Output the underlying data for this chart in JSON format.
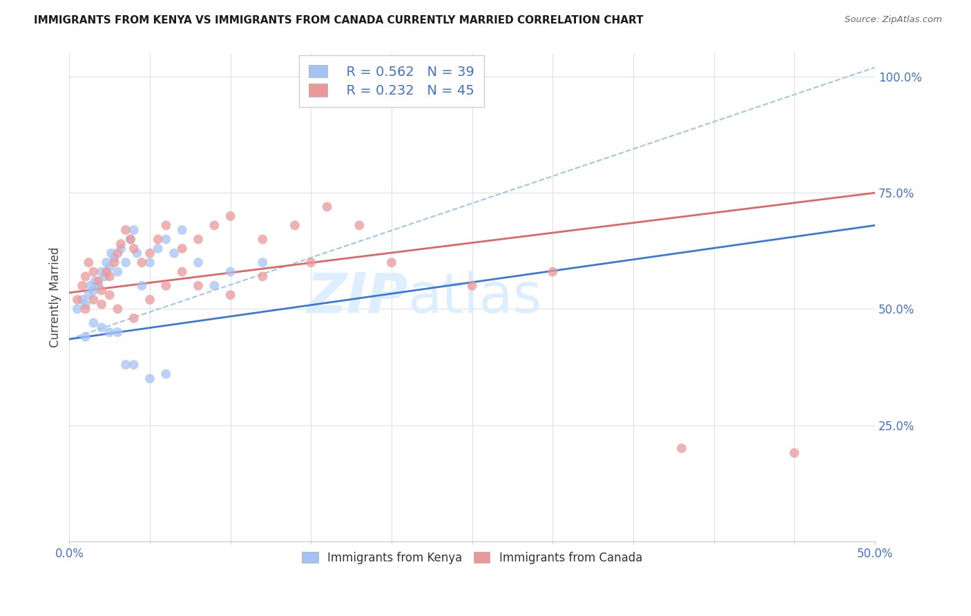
{
  "title": "IMMIGRANTS FROM KENYA VS IMMIGRANTS FROM CANADA CURRENTLY MARRIED CORRELATION CHART",
  "source": "Source: ZipAtlas.com",
  "ylabel": "Currently Married",
  "legend_label_blue": "Immigrants from Kenya",
  "legend_label_pink": "Immigrants from Canada",
  "legend_r_blue": "R = 0.562",
  "legend_n_blue": "N = 39",
  "legend_r_pink": "R = 0.232",
  "legend_n_pink": "N = 45",
  "blue_color": "#a4c2f4",
  "pink_color": "#ea9999",
  "blue_line_color": "#3c78d8",
  "pink_line_color": "#e06666",
  "dashed_line_color": "#9fc5e8",
  "grid_color": "#e0e0e0",
  "title_color": "#1a1a1a",
  "axis_label_color": "#4472c4",
  "watermark_color": "#ddeeff",
  "background_color": "#ffffff",
  "kenya_x": [
    0.5,
    0.8,
    1.0,
    1.2,
    1.3,
    1.5,
    1.6,
    1.8,
    2.0,
    2.2,
    2.3,
    2.5,
    2.6,
    2.8,
    3.0,
    3.2,
    3.5,
    3.8,
    4.0,
    4.2,
    4.5,
    5.0,
    5.5,
    6.0,
    6.5,
    7.0,
    8.0,
    9.0,
    10.0,
    12.0,
    1.0,
    1.5,
    2.0,
    2.5,
    3.0,
    3.5,
    4.0,
    5.0,
    6.0
  ],
  "kenya_y": [
    0.5,
    0.52,
    0.51,
    0.53,
    0.55,
    0.54,
    0.56,
    0.55,
    0.58,
    0.57,
    0.6,
    0.59,
    0.62,
    0.61,
    0.58,
    0.63,
    0.6,
    0.65,
    0.67,
    0.62,
    0.55,
    0.6,
    0.63,
    0.65,
    0.62,
    0.67,
    0.6,
    0.55,
    0.58,
    0.6,
    0.44,
    0.47,
    0.46,
    0.45,
    0.45,
    0.38,
    0.38,
    0.35,
    0.36
  ],
  "canada_x": [
    0.5,
    0.8,
    1.0,
    1.2,
    1.5,
    1.8,
    2.0,
    2.3,
    2.5,
    2.8,
    3.0,
    3.2,
    3.5,
    3.8,
    4.0,
    4.5,
    5.0,
    5.5,
    6.0,
    7.0,
    8.0,
    9.0,
    10.0,
    12.0,
    14.0,
    16.0,
    18.0,
    20.0,
    25.0,
    30.0,
    1.0,
    1.5,
    2.0,
    2.5,
    3.0,
    4.0,
    5.0,
    6.0,
    7.0,
    8.0,
    10.0,
    12.0,
    15.0,
    38.0,
    45.0
  ],
  "canada_y": [
    0.52,
    0.55,
    0.57,
    0.6,
    0.58,
    0.56,
    0.54,
    0.58,
    0.57,
    0.6,
    0.62,
    0.64,
    0.67,
    0.65,
    0.63,
    0.6,
    0.62,
    0.65,
    0.68,
    0.63,
    0.65,
    0.68,
    0.7,
    0.65,
    0.68,
    0.72,
    0.68,
    0.6,
    0.55,
    0.58,
    0.5,
    0.52,
    0.51,
    0.53,
    0.5,
    0.48,
    0.52,
    0.55,
    0.58,
    0.55,
    0.53,
    0.57,
    0.6,
    0.2,
    0.19
  ],
  "xlim": [
    0.0,
    50.0
  ],
  "ylim": [
    0.0,
    1.05
  ],
  "yticks": [
    0.25,
    0.5,
    0.75,
    1.0
  ],
  "ytick_labels": [
    "25.0%",
    "50.0%",
    "75.0%",
    "100.0%"
  ],
  "blue_line_x0": 0.0,
  "blue_line_y0": 0.435,
  "blue_line_x1": 50.0,
  "blue_line_y1": 0.68,
  "pink_line_x0": 0.0,
  "pink_line_y0": 0.535,
  "pink_line_x1": 50.0,
  "pink_line_y1": 0.75,
  "dash_line_x0": 0.0,
  "dash_line_y0": 0.435,
  "dash_line_x1": 50.0,
  "dash_line_y1": 1.02
}
